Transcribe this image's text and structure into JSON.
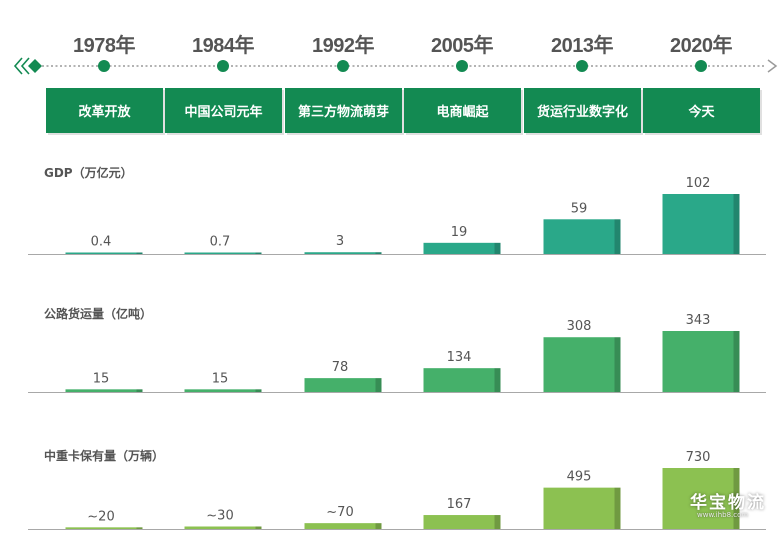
{
  "timeline": {
    "years": [
      "1978年",
      "1984年",
      "1992年",
      "2005年",
      "2013年",
      "2020年"
    ],
    "eras": [
      "改革开放",
      "中国公司元年",
      "第三方物流萌芽",
      "电商崛起",
      "货运行业数字化",
      "今天"
    ],
    "accent": "#138a52",
    "line_color": "#9a9a9a"
  },
  "chart_data": [
    {
      "type": "bar",
      "title": "GDP（万亿元）",
      "categories": [
        "1978年",
        "1984年",
        "1992年",
        "2005年",
        "2013年",
        "2020年"
      ],
      "values": [
        0.4,
        0.7,
        3,
        19,
        59,
        102
      ],
      "labels": [
        "0.4",
        "0.7",
        "3",
        "19",
        "59",
        "102"
      ],
      "ylim": [
        0,
        102
      ],
      "color": "#2aa889",
      "grid": false
    },
    {
      "type": "bar",
      "title": "公路货运量（亿吨）",
      "categories": [
        "1978年",
        "1984年",
        "1992年",
        "2005年",
        "2013年",
        "2020年"
      ],
      "values": [
        15,
        15,
        78,
        134,
        308,
        343
      ],
      "labels": [
        "15",
        "15",
        "78",
        "134",
        "308",
        "343"
      ],
      "ylim": [
        0,
        343
      ],
      "color": "#45b06a",
      "grid": false
    },
    {
      "type": "bar",
      "title": "中重卡保有量（万辆）",
      "categories": [
        "1978年",
        "1984年",
        "1992年",
        "2005年",
        "2013年",
        "2020年"
      ],
      "values": [
        20,
        30,
        70,
        167,
        495,
        730
      ],
      "labels": [
        "~20",
        "~30",
        "~70",
        "167",
        "495",
        "730"
      ],
      "ylim": [
        0,
        730
      ],
      "color": "#8cc151",
      "grid": false
    }
  ],
  "watermark": {
    "text": "华宝物流",
    "sub": "www.ihb8.com"
  }
}
